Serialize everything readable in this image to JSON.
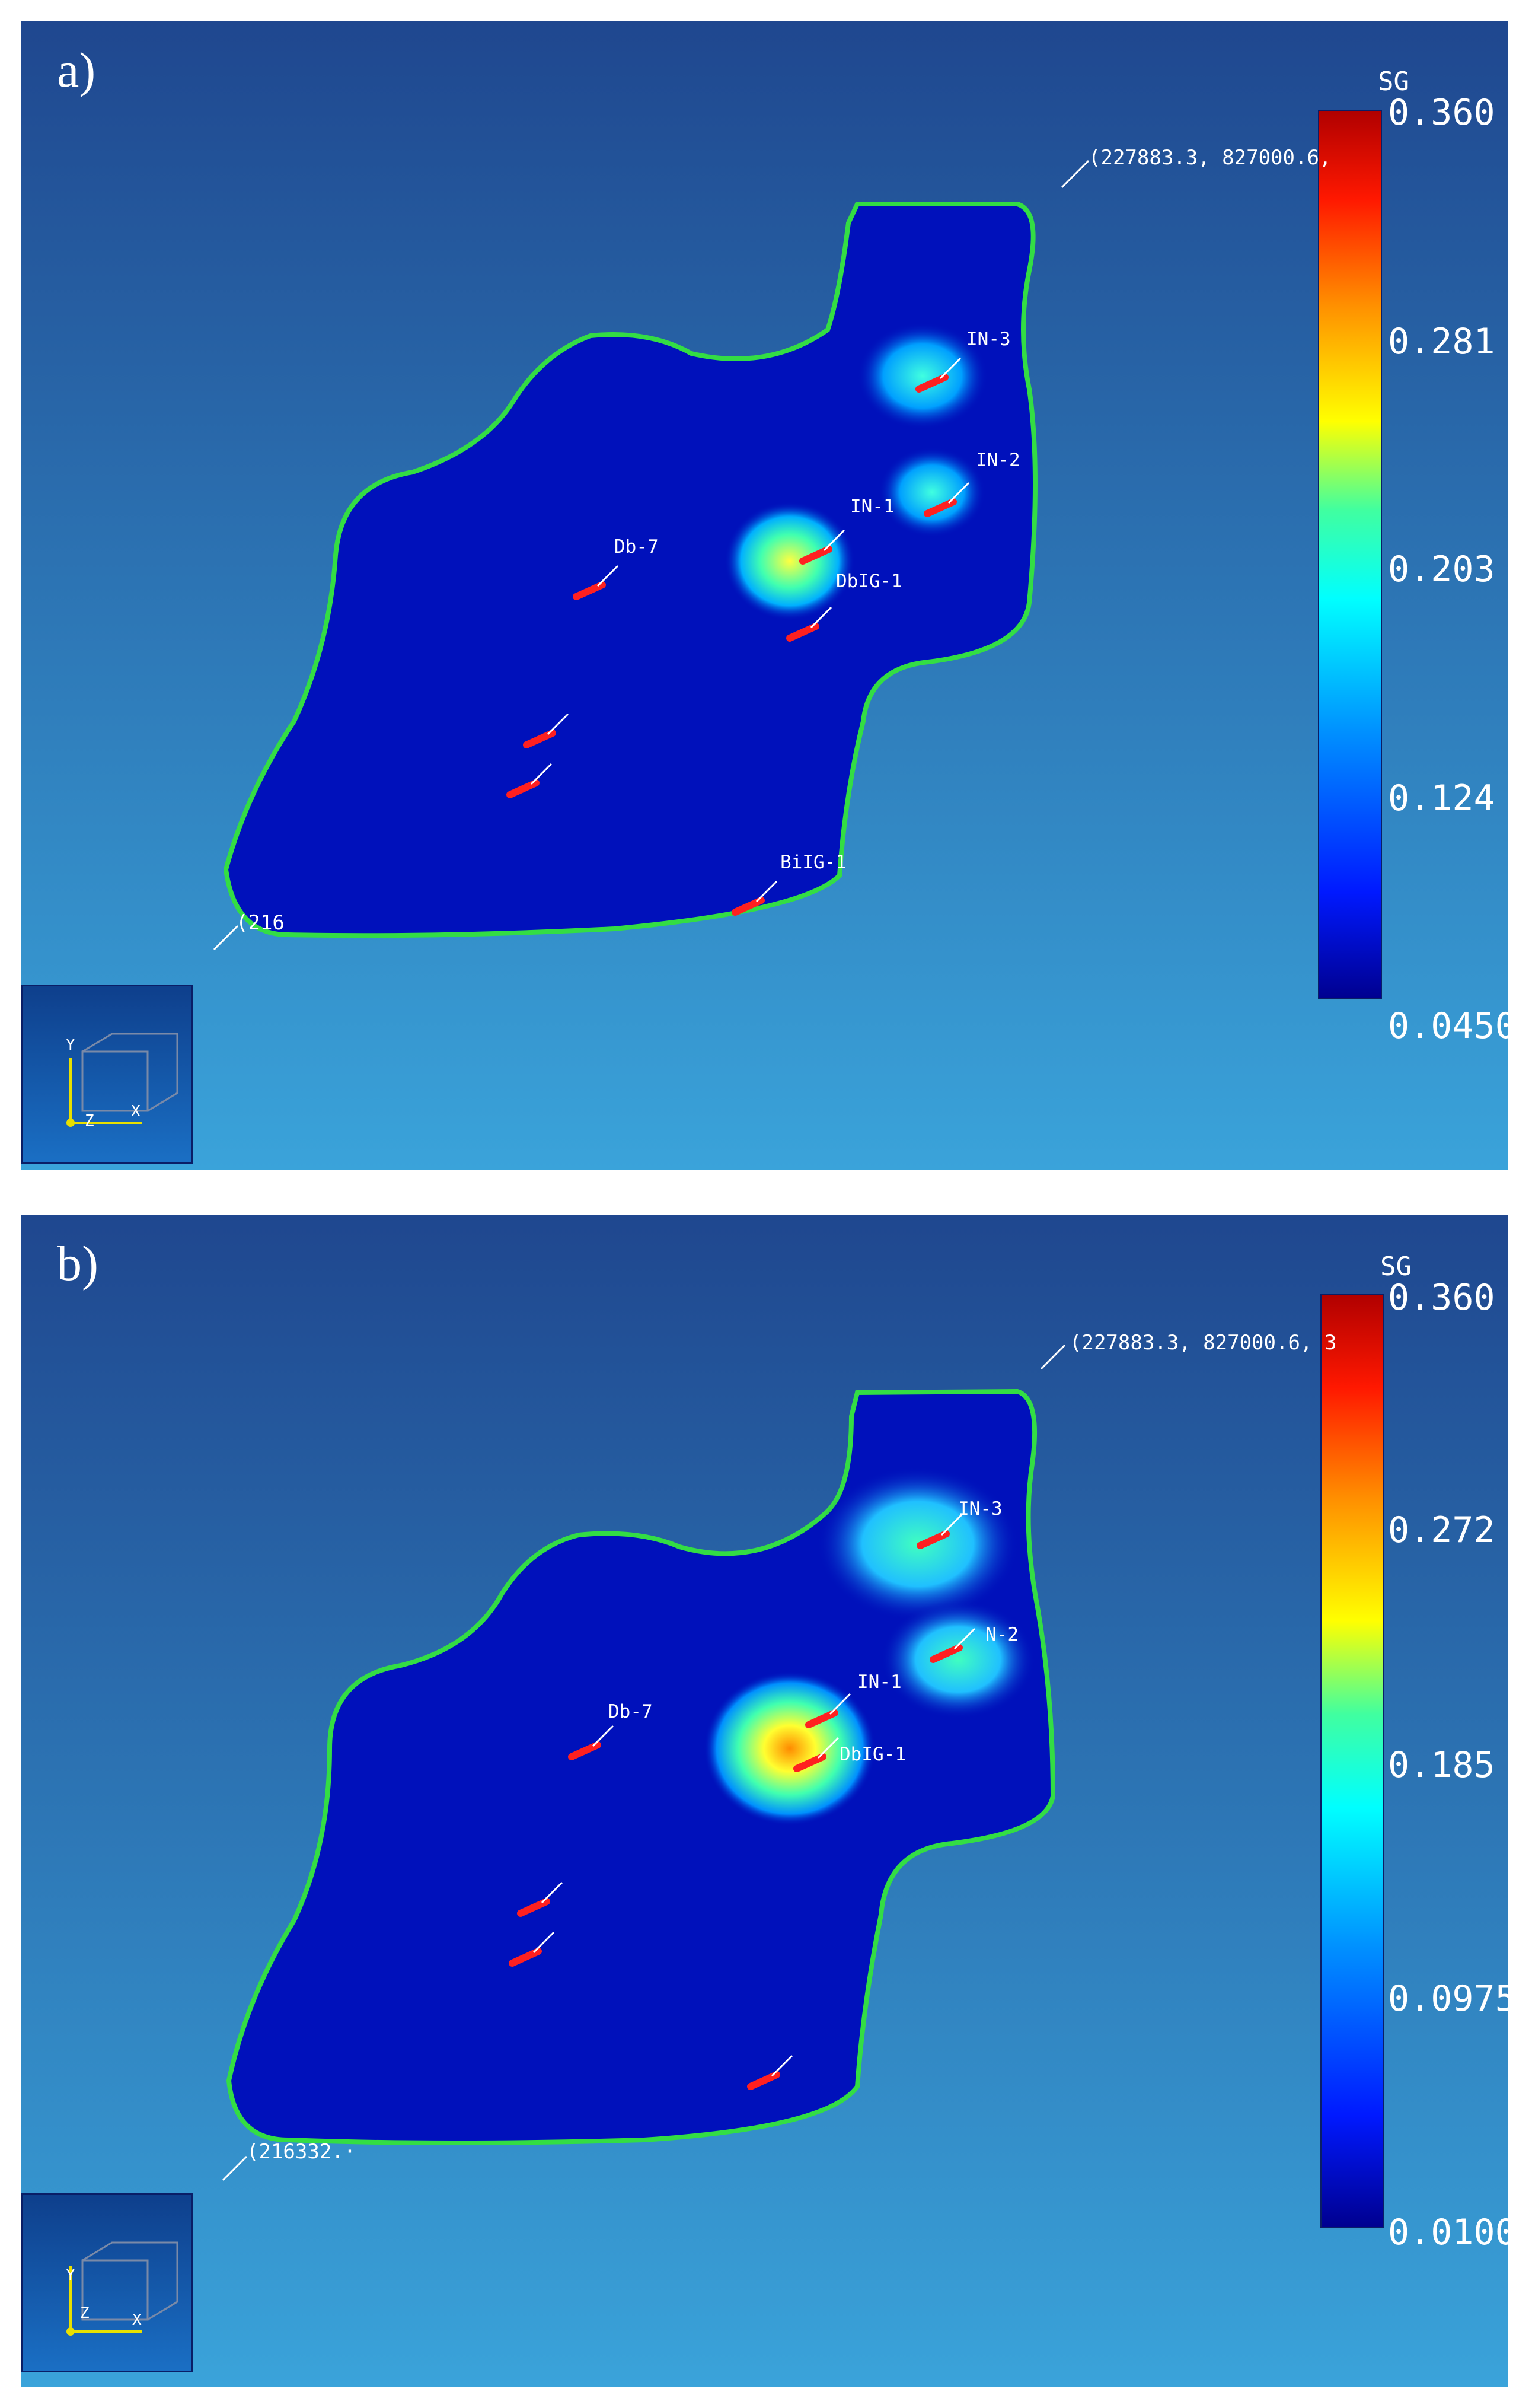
{
  "panels": [
    {
      "id": "a",
      "letter": "a)",
      "legend": {
        "title": "SG",
        "ticks": [
          "0.360",
          "0.281",
          "0.203",
          "0.124",
          "0.0450"
        ],
        "min": 0.045,
        "max": 0.36
      },
      "coords": {
        "top_right": "(227883.3, 827000.6,",
        "bottom_left": "(216"
      },
      "wells": [
        {
          "label": "IN-3"
        },
        {
          "label": "IN-2"
        },
        {
          "label": "IN-1"
        },
        {
          "label": "DbIG-1"
        },
        {
          "label": "Db-7"
        },
        {
          "label": ""
        },
        {
          "label": ""
        },
        {
          "label": "BiIG-1"
        }
      ],
      "axes": {
        "y": "Y",
        "z": "Z",
        "x": "X"
      }
    },
    {
      "id": "b",
      "letter": "b)",
      "legend": {
        "title": "SG",
        "ticks": [
          "0.360",
          "0.272",
          "0.185",
          "0.0975",
          "0.0100"
        ],
        "min": 0.01,
        "max": 0.36
      },
      "coords": {
        "top_right": "(227883.3, 827000.6, 3",
        "bottom_left": "(216332.·"
      },
      "wells": [
        {
          "label": "IN-3"
        },
        {
          "label": "N-2"
        },
        {
          "label": "IN-1"
        },
        {
          "label": "DbIG-1"
        },
        {
          "label": "Db-7"
        },
        {
          "label": ""
        },
        {
          "label": ""
        },
        {
          "label": ""
        }
      ],
      "axes": {
        "y": "Y",
        "z": "Z",
        "x": "X"
      }
    }
  ],
  "colors": {
    "background_top": "#1f478f",
    "background_bottom": "#3aa3da",
    "domain_fill": "#0011bb",
    "domain_outline": "#33dd44",
    "well_marker": "#ff2020",
    "colorbar": [
      "#00008f",
      "#0000c8",
      "#0019ff",
      "#0050ff",
      "#0090ff",
      "#00c8ff",
      "#00ffe0",
      "#40ffa0",
      "#9fff60",
      "#ffff00",
      "#ffcf00",
      "#ff9000",
      "#ff5000",
      "#ff1800",
      "#c00000"
    ]
  }
}
